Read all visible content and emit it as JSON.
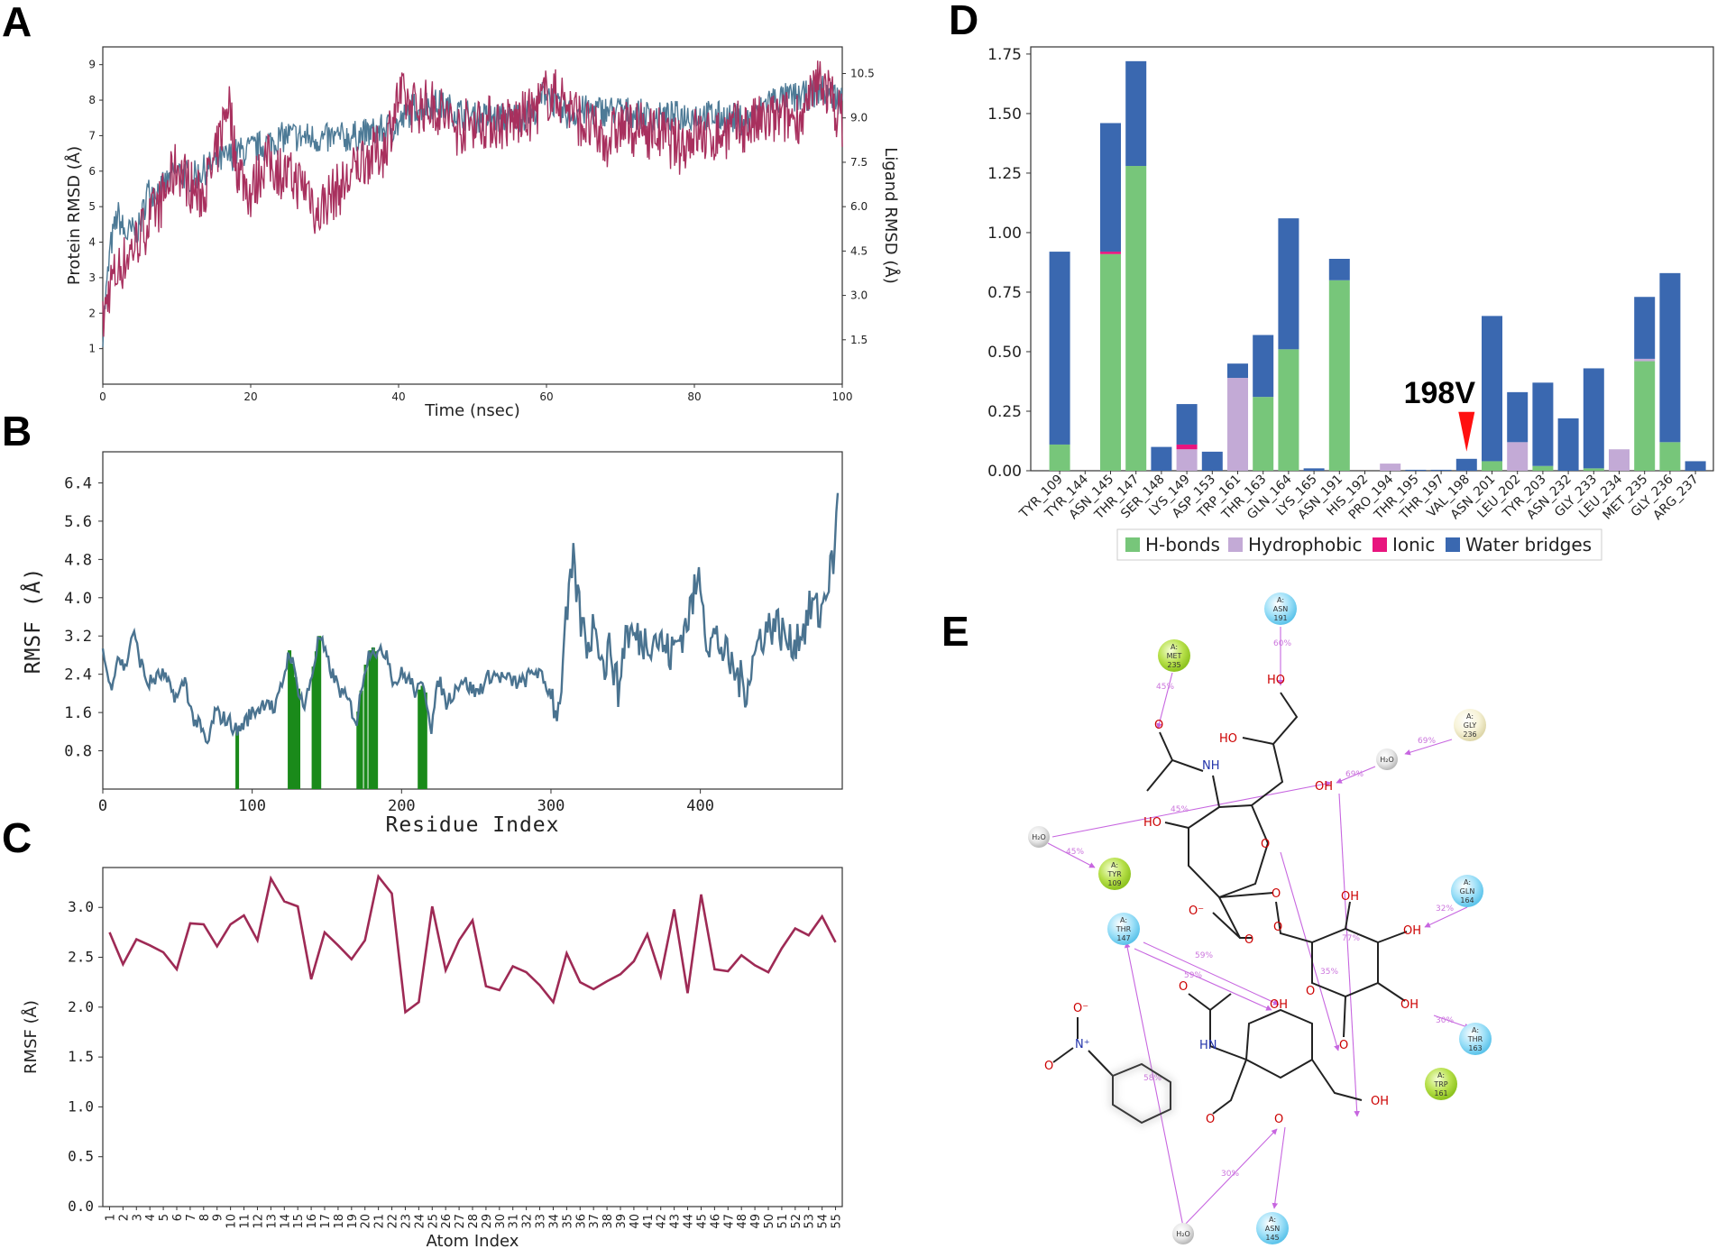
{
  "panel_labels": {
    "a": "A",
    "b": "B",
    "c": "C",
    "d": "D",
    "e": "E"
  },
  "colors": {
    "protein": "#4d7a96",
    "ligand": "#a8305e",
    "rmsf": "#4a7390",
    "contact": "#1a8a1a",
    "lig_rmsf": "#9e2a55",
    "hbond": "#77c67a",
    "hydrophobic": "#c3aad6",
    "ionic": "#e8157e",
    "water": "#3a68b0",
    "arrow": "#ff1010"
  },
  "chart_data": [
    {
      "id": "A",
      "type": "line",
      "xlabel": "Time (nsec)",
      "ylabel": "Protein RMSD (Å)",
      "ylabel_right": "Ligand RMSD (Å)",
      "xlim": [
        0,
        100
      ],
      "ylim": [
        0,
        9.5
      ],
      "ylim_right": [
        0,
        11.4
      ],
      "xticks": [
        "0",
        "20",
        "40",
        "60",
        "80",
        "100"
      ],
      "yticks": [
        "1",
        "2",
        "3",
        "4",
        "5",
        "6",
        "7",
        "8",
        "9"
      ],
      "yticks_right": [
        "1.5",
        "3.0",
        "4.5",
        "6.0",
        "7.5",
        "9.0",
        "10.5"
      ],
      "protein_anchors": {
        "x": [
          0,
          1,
          2,
          3,
          5,
          6,
          8,
          10,
          12,
          15,
          18,
          20,
          25,
          30,
          35,
          40,
          42,
          45,
          50,
          55,
          58,
          60,
          62,
          65,
          70,
          75,
          80,
          85,
          88,
          90,
          95,
          97,
          100
        ],
        "y": [
          1.5,
          3.8,
          4.8,
          4.2,
          4.4,
          5.4,
          5.5,
          6.0,
          5.8,
          6.2,
          6.5,
          6.6,
          7.0,
          6.9,
          7.0,
          7.3,
          7.8,
          7.9,
          7.5,
          7.5,
          7.6,
          8.3,
          7.6,
          7.7,
          7.7,
          7.5,
          7.6,
          7.5,
          7.4,
          8.0,
          8.1,
          8.3,
          8.0
        ]
      },
      "ligand_anchors": {
        "x": [
          0,
          1,
          3,
          5,
          8,
          10,
          13,
          15,
          17,
          18,
          20,
          22,
          25,
          28,
          29,
          30,
          33,
          35,
          38,
          40,
          42,
          45,
          48,
          50,
          55,
          58,
          60,
          62,
          65,
          68,
          70,
          75,
          78,
          80,
          82,
          85,
          90,
          95,
          97,
          99,
          100
        ],
        "y": [
          2.0,
          3.4,
          4.2,
          5.0,
          6.2,
          7.4,
          6.3,
          7.3,
          9.7,
          7.5,
          6.4,
          7.6,
          7.0,
          6.6,
          5.6,
          6.2,
          6.8,
          7.6,
          7.9,
          9.7,
          9.4,
          9.4,
          8.6,
          8.9,
          8.8,
          9.1,
          9.8,
          9.7,
          8.8,
          8.2,
          8.7,
          8.5,
          8.0,
          8.5,
          8.3,
          8.6,
          8.9,
          9.1,
          10.4,
          9.4,
          8.9
        ]
      }
    },
    {
      "id": "B",
      "type": "line",
      "xlabel": "Residue Index",
      "ylabel": "RMSF (Å)",
      "xlim": [
        0,
        495
      ],
      "ylim": [
        0,
        7.05
      ],
      "xticks": [
        "0",
        "100",
        "200",
        "300",
        "400"
      ],
      "yticks": [
        "0.8",
        "1.6",
        "2.4",
        "3.2",
        "4.0",
        "4.8",
        "5.6",
        "6.4"
      ],
      "ytick_values": [
        0.8,
        1.6,
        2.4,
        3.2,
        4.0,
        4.8,
        5.6,
        6.4
      ],
      "rmsf_anchors": {
        "x": [
          0,
          5,
          10,
          15,
          20,
          25,
          30,
          40,
          45,
          50,
          55,
          60,
          65,
          70,
          75,
          80,
          85,
          90,
          95,
          100,
          105,
          110,
          115,
          120,
          125,
          130,
          135,
          140,
          145,
          150,
          155,
          160,
          165,
          170,
          175,
          180,
          185,
          190,
          195,
          200,
          205,
          210,
          215,
          220,
          225,
          230,
          240,
          250,
          260,
          270,
          280,
          290,
          300,
          305,
          310,
          315,
          320,
          325,
          330,
          335,
          340,
          345,
          350,
          360,
          370,
          380,
          390,
          400,
          405,
          410,
          420,
          430,
          440,
          450,
          460,
          470,
          475,
          480,
          485,
          490,
          492
        ],
        "y": [
          2.9,
          2.1,
          2.8,
          2.5,
          3.3,
          2.7,
          2.2,
          2.4,
          2.1,
          1.9,
          2.3,
          1.5,
          1.3,
          0.9,
          1.6,
          1.5,
          1.4,
          1.2,
          1.4,
          1.6,
          1.7,
          1.9,
          1.6,
          2.2,
          2.9,
          2.2,
          1.7,
          2.4,
          3.2,
          2.7,
          2.3,
          2.0,
          1.8,
          1.4,
          2.5,
          3.0,
          2.8,
          2.9,
          2.2,
          2.4,
          2.3,
          2.0,
          2.2,
          1.3,
          2.3,
          1.8,
          2.3,
          2.0,
          2.4,
          2.3,
          2.2,
          2.5,
          2.0,
          1.6,
          3.4,
          4.7,
          3.5,
          3.0,
          3.6,
          2.5,
          3.0,
          2.0,
          3.3,
          3.1,
          3.2,
          2.8,
          3.4,
          4.5,
          3.0,
          3.2,
          2.6,
          2.1,
          3.2,
          3.5,
          3.0,
          3.4,
          3.9,
          3.6,
          4.3,
          4.9,
          6.3
        ]
      },
      "contact_residues": [
        90,
        125,
        127,
        129,
        131,
        141,
        143,
        145,
        171,
        173,
        176,
        179,
        181,
        183,
        212,
        214,
        216
      ]
    },
    {
      "id": "C",
      "type": "line",
      "xlabel": "Atom Index",
      "ylabel": "RMSF (Å)",
      "xlim": [
        0.5,
        55.5
      ],
      "ylim": [
        0,
        3.4
      ],
      "yticks": [
        "0.0",
        "0.5",
        "1.0",
        "1.5",
        "2.0",
        "2.5",
        "3.0"
      ],
      "ytick_values": [
        0.0,
        0.5,
        1.0,
        1.5,
        2.0,
        2.5,
        3.0
      ],
      "x": [
        "1",
        "2",
        "3",
        "4",
        "5",
        "6",
        "7",
        "8",
        "9",
        "10",
        "11",
        "12",
        "13",
        "14",
        "15",
        "16",
        "17",
        "18",
        "19",
        "20",
        "21",
        "22",
        "23",
        "24",
        "25",
        "26",
        "27",
        "28",
        "29",
        "30",
        "31",
        "32",
        "33",
        "34",
        "35",
        "36",
        "37",
        "38",
        "39",
        "40",
        "41",
        "42",
        "43",
        "44",
        "45",
        "46",
        "47",
        "48",
        "49",
        "50",
        "51",
        "52",
        "53",
        "54",
        "55"
      ],
      "values": [
        2.75,
        2.43,
        2.68,
        2.62,
        2.55,
        2.38,
        2.84,
        2.83,
        2.61,
        2.83,
        2.92,
        2.67,
        3.29,
        3.06,
        3.01,
        2.28,
        2.75,
        2.62,
        2.48,
        2.67,
        3.31,
        3.14,
        1.95,
        2.05,
        3.01,
        2.37,
        2.67,
        2.87,
        2.21,
        2.17,
        2.41,
        2.35,
        2.22,
        2.05,
        2.54,
        2.25,
        2.18,
        2.26,
        2.33,
        2.46,
        2.73,
        2.31,
        2.98,
        2.14,
        3.13,
        2.38,
        2.36,
        2.52,
        2.42,
        2.35,
        2.59,
        2.79,
        2.72,
        2.91,
        2.65
      ]
    },
    {
      "id": "D",
      "type": "bar",
      "stacked": true,
      "ylim": [
        0,
        1.78
      ],
      "yticks": [
        "0.00",
        "0.25",
        "0.50",
        "0.75",
        "1.00",
        "1.25",
        "1.50",
        "1.75"
      ],
      "ytick_values": [
        0,
        0.25,
        0.5,
        0.75,
        1.0,
        1.25,
        1.5,
        1.75
      ],
      "categories": [
        "TYR_109",
        "TYR_144",
        "ASN_145",
        "THR_147",
        "SER_148",
        "LYS_149",
        "ASP_153",
        "TRP_161",
        "THR_163",
        "GLN_164",
        "LYS_165",
        "ASN_191",
        "HIS_192",
        "PRO_194",
        "THR_195",
        "THR_197",
        "VAL_198",
        "ASN_201",
        "LEU_202",
        "TYR_203",
        "ASN_232",
        "GLY_233",
        "LEU_234",
        "MET_235",
        "GLY_236",
        "ARG_237"
      ],
      "series": [
        {
          "name": "H-bonds",
          "values": [
            0.11,
            0,
            0.91,
            1.28,
            0,
            0,
            0,
            0,
            0.31,
            0.51,
            0,
            0.8,
            0,
            0,
            0,
            0,
            0,
            0.04,
            0,
            0.02,
            0,
            0.01,
            0,
            0.46,
            0.12,
            0
          ]
        },
        {
          "name": "Hydrophobic",
          "values": [
            0,
            0,
            0,
            0,
            0,
            0.09,
            0,
            0.39,
            0,
            0,
            0,
            0,
            0,
            0.03,
            0,
            0,
            0,
            0,
            0.12,
            0,
            0,
            0,
            0.09,
            0.01,
            0,
            0
          ]
        },
        {
          "name": "Ionic",
          "values": [
            0,
            0,
            0.01,
            0,
            0,
            0.02,
            0,
            0,
            0,
            0,
            0,
            0,
            0,
            0,
            0,
            0,
            0,
            0,
            0,
            0,
            0,
            0,
            0,
            0,
            0,
            0
          ]
        },
        {
          "name": "Water bridges",
          "values": [
            0.81,
            0,
            0.54,
            0.44,
            0.1,
            0.17,
            0.08,
            0.06,
            0.26,
            0.55,
            0.01,
            0.09,
            0,
            0,
            0.004,
            0.004,
            0.05,
            0.61,
            0.21,
            0.35,
            0.22,
            0.42,
            0,
            0.26,
            0.71,
            0.04
          ]
        }
      ],
      "annotation": {
        "text": "198V",
        "category": "VAL_198"
      }
    }
  ],
  "panelE": {
    "residues": [
      {
        "chain": "A:",
        "name": "ASN",
        "num": "191"
      },
      {
        "chain": "A:",
        "name": "MET",
        "num": "235"
      },
      {
        "chain": "A:",
        "name": "GLY",
        "num": "236"
      },
      {
        "chain": "A:",
        "name": "TYR",
        "num": "109"
      },
      {
        "chain": "A:",
        "name": "GLN",
        "num": "164"
      },
      {
        "chain": "A:",
        "name": "THR",
        "num": "147"
      },
      {
        "chain": "A:",
        "name": "THR",
        "num": "163"
      },
      {
        "chain": "A:",
        "name": "TRP",
        "num": "161"
      },
      {
        "chain": "A:",
        "name": "ASN",
        "num": "145"
      }
    ],
    "waters": [
      "H₂O",
      "H₂O",
      "H₂O"
    ],
    "atoms": {
      "ho1": "HO",
      "ho2": "HO",
      "oh1": "OH",
      "nh": "NH",
      "ho3": "HO",
      "o1": "O",
      "o2": "O",
      "ominus": "O⁻",
      "ocarb": "O",
      "o3": "O",
      "oh2": "OH",
      "oh3": "OH",
      "o4": "O",
      "oh4": "OH",
      "o5": "O",
      "oh5": "OH",
      "hn": "HN",
      "o6": "O",
      "o7": "O",
      "oh6": "OH",
      "o8": "O",
      "o9": "O",
      "nplus": "N⁺",
      "onitro1": "O⁻",
      "onitro2": "O"
    },
    "percents": [
      "60%",
      "45%",
      "69%",
      "69%",
      "45%",
      "45%",
      "32%",
      "77%",
      "35%",
      "59%",
      "59%",
      "30%",
      "58%",
      "30%"
    ]
  }
}
